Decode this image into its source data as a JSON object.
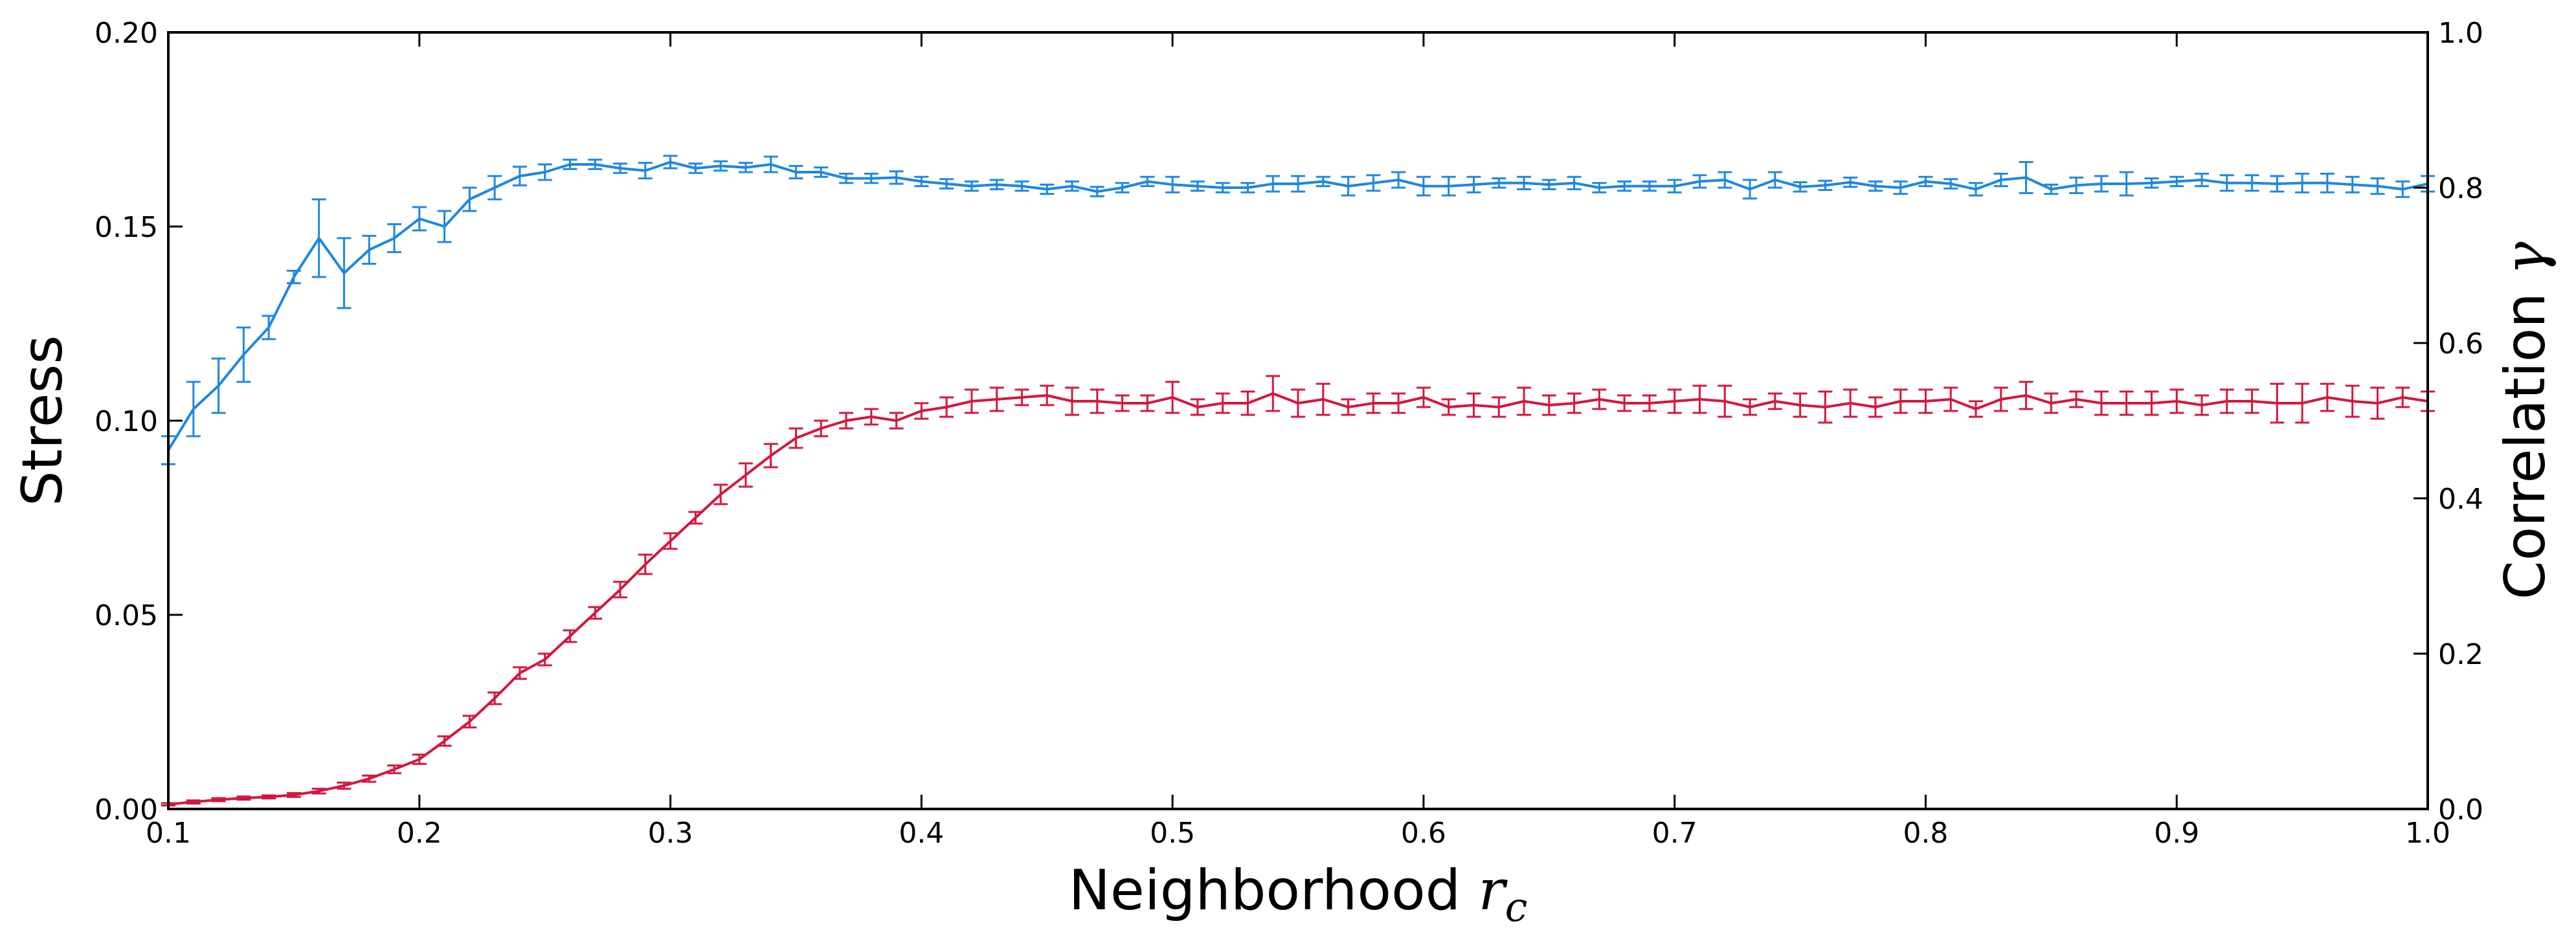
{
  "chart_data": {
    "type": "line",
    "xlabel": {
      "text": "Neighborhood ",
      "symbol": "r",
      "subscript": "c"
    },
    "ylabel_left": "Stress",
    "ylabel_right": {
      "text": "Correlation ",
      "symbol": "γ"
    },
    "xlim": [
      0.1,
      1.0
    ],
    "ylim_left": [
      0.0,
      0.2
    ],
    "ylim_right": [
      0.0,
      1.0
    ],
    "x_ticks": [
      "0.1",
      "0.2",
      "0.3",
      "0.4",
      "0.5",
      "0.6",
      "0.7",
      "0.8",
      "0.9",
      "1.0"
    ],
    "y_ticks_left": [
      "0.00",
      "0.05",
      "0.10",
      "0.15",
      "0.20"
    ],
    "y_ticks_right": [
      "0.0",
      "0.2",
      "0.4",
      "0.6",
      "0.8",
      "1.0"
    ],
    "grid": false,
    "x": [
      0.1,
      0.11,
      0.12,
      0.13,
      0.14,
      0.15,
      0.16,
      0.17,
      0.18,
      0.19,
      0.2,
      0.21,
      0.22,
      0.23,
      0.24,
      0.25,
      0.26,
      0.27,
      0.28,
      0.29,
      0.3,
      0.31,
      0.32,
      0.33,
      0.34,
      0.35,
      0.36,
      0.37,
      0.38,
      0.39,
      0.4,
      0.41,
      0.42,
      0.43,
      0.44,
      0.45,
      0.46,
      0.47,
      0.48,
      0.49,
      0.5,
      0.51,
      0.52,
      0.53,
      0.54,
      0.55,
      0.56,
      0.57,
      0.58,
      0.59,
      0.6,
      0.61,
      0.62,
      0.63,
      0.64,
      0.65,
      0.66,
      0.67,
      0.68,
      0.69,
      0.7,
      0.71,
      0.72,
      0.73,
      0.74,
      0.75,
      0.76,
      0.77,
      0.78,
      0.79,
      0.8,
      0.81,
      0.82,
      0.83,
      0.84,
      0.85,
      0.86,
      0.87,
      0.88,
      0.89,
      0.9,
      0.91,
      0.92,
      0.93,
      0.94,
      0.95,
      0.96,
      0.97,
      0.98,
      0.99,
      1.0
    ],
    "series": [
      {
        "axis": "left",
        "color": "#d4173e",
        "values": [
          0.0012,
          0.0018,
          0.0024,
          0.0028,
          0.0031,
          0.0036,
          0.0046,
          0.006,
          0.0078,
          0.0102,
          0.0128,
          0.0175,
          0.0225,
          0.0285,
          0.035,
          0.0385,
          0.0445,
          0.0505,
          0.0565,
          0.063,
          0.069,
          0.075,
          0.081,
          0.086,
          0.091,
          0.0955,
          0.098,
          0.1,
          0.101,
          0.1,
          0.1025,
          0.1035,
          0.105,
          0.1055,
          0.106,
          0.1065,
          0.105,
          0.105,
          0.1045,
          0.1045,
          0.106,
          0.1035,
          0.1045,
          0.1045,
          0.107,
          0.1045,
          0.1055,
          0.1035,
          0.1045,
          0.1045,
          0.106,
          0.1035,
          0.104,
          0.1035,
          0.105,
          0.104,
          0.1045,
          0.1055,
          0.1045,
          0.1045,
          0.105,
          0.1055,
          0.105,
          0.1035,
          0.105,
          0.104,
          0.1035,
          0.1045,
          0.1035,
          0.105,
          0.105,
          0.1055,
          0.103,
          0.1055,
          0.1065,
          0.1045,
          0.1055,
          0.1045,
          0.1045,
          0.1045,
          0.105,
          0.104,
          0.105,
          0.105,
          0.1045,
          0.1045,
          0.106,
          0.105,
          0.1045,
          0.106,
          0.105
        ],
        "errors": [
          0.0003,
          0.0004,
          0.0004,
          0.0004,
          0.0004,
          0.0005,
          0.0006,
          0.0008,
          0.0008,
          0.001,
          0.0012,
          0.0012,
          0.0015,
          0.0015,
          0.0015,
          0.0015,
          0.0015,
          0.0015,
          0.002,
          0.0025,
          0.002,
          0.0015,
          0.0025,
          0.003,
          0.003,
          0.0025,
          0.002,
          0.002,
          0.002,
          0.002,
          0.002,
          0.0025,
          0.003,
          0.003,
          0.002,
          0.0025,
          0.0035,
          0.003,
          0.002,
          0.002,
          0.004,
          0.002,
          0.0025,
          0.003,
          0.0045,
          0.0035,
          0.004,
          0.002,
          0.0025,
          0.0025,
          0.0025,
          0.002,
          0.003,
          0.0025,
          0.0035,
          0.0025,
          0.0025,
          0.0025,
          0.002,
          0.002,
          0.003,
          0.0035,
          0.004,
          0.002,
          0.002,
          0.003,
          0.004,
          0.0035,
          0.0025,
          0.003,
          0.003,
          0.003,
          0.002,
          0.003,
          0.0035,
          0.0025,
          0.002,
          0.003,
          0.003,
          0.003,
          0.003,
          0.0025,
          0.003,
          0.003,
          0.005,
          0.005,
          0.0035,
          0.004,
          0.004,
          0.0025,
          0.0025
        ]
      },
      {
        "axis": "right",
        "color": "#1e87e0",
        "values": [
          0.462,
          0.515,
          0.545,
          0.585,
          0.62,
          0.685,
          0.735,
          0.69,
          0.72,
          0.735,
          0.76,
          0.75,
          0.785,
          0.8,
          0.815,
          0.82,
          0.83,
          0.83,
          0.825,
          0.822,
          0.833,
          0.825,
          0.828,
          0.826,
          0.83,
          0.82,
          0.82,
          0.812,
          0.812,
          0.813,
          0.808,
          0.805,
          0.802,
          0.804,
          0.802,
          0.798,
          0.802,
          0.795,
          0.8,
          0.808,
          0.804,
          0.802,
          0.8,
          0.8,
          0.805,
          0.805,
          0.808,
          0.802,
          0.806,
          0.81,
          0.802,
          0.802,
          0.804,
          0.806,
          0.806,
          0.804,
          0.806,
          0.8,
          0.802,
          0.802,
          0.802,
          0.808,
          0.81,
          0.798,
          0.81,
          0.801,
          0.803,
          0.807,
          0.802,
          0.8,
          0.808,
          0.805,
          0.798,
          0.81,
          0.813,
          0.798,
          0.803,
          0.805,
          0.805,
          0.806,
          0.808,
          0.81,
          0.806,
          0.806,
          0.805,
          0.806,
          0.806,
          0.804,
          0.802,
          0.798,
          0.805
        ],
        "errors": [
          0.018,
          0.035,
          0.035,
          0.035,
          0.015,
          0.008,
          0.05,
          0.045,
          0.018,
          0.018,
          0.015,
          0.02,
          0.015,
          0.015,
          0.012,
          0.01,
          0.006,
          0.006,
          0.006,
          0.01,
          0.008,
          0.006,
          0.006,
          0.006,
          0.01,
          0.008,
          0.006,
          0.006,
          0.006,
          0.008,
          0.006,
          0.006,
          0.006,
          0.006,
          0.006,
          0.006,
          0.006,
          0.006,
          0.006,
          0.006,
          0.01,
          0.006,
          0.006,
          0.006,
          0.01,
          0.01,
          0.006,
          0.012,
          0.01,
          0.01,
          0.012,
          0.012,
          0.01,
          0.006,
          0.008,
          0.006,
          0.008,
          0.006,
          0.006,
          0.006,
          0.008,
          0.008,
          0.01,
          0.012,
          0.01,
          0.006,
          0.006,
          0.006,
          0.006,
          0.008,
          0.006,
          0.006,
          0.008,
          0.008,
          0.02,
          0.006,
          0.01,
          0.01,
          0.015,
          0.006,
          0.006,
          0.008,
          0.01,
          0.01,
          0.01,
          0.012,
          0.012,
          0.01,
          0.01,
          0.01,
          0.01
        ]
      }
    ]
  }
}
